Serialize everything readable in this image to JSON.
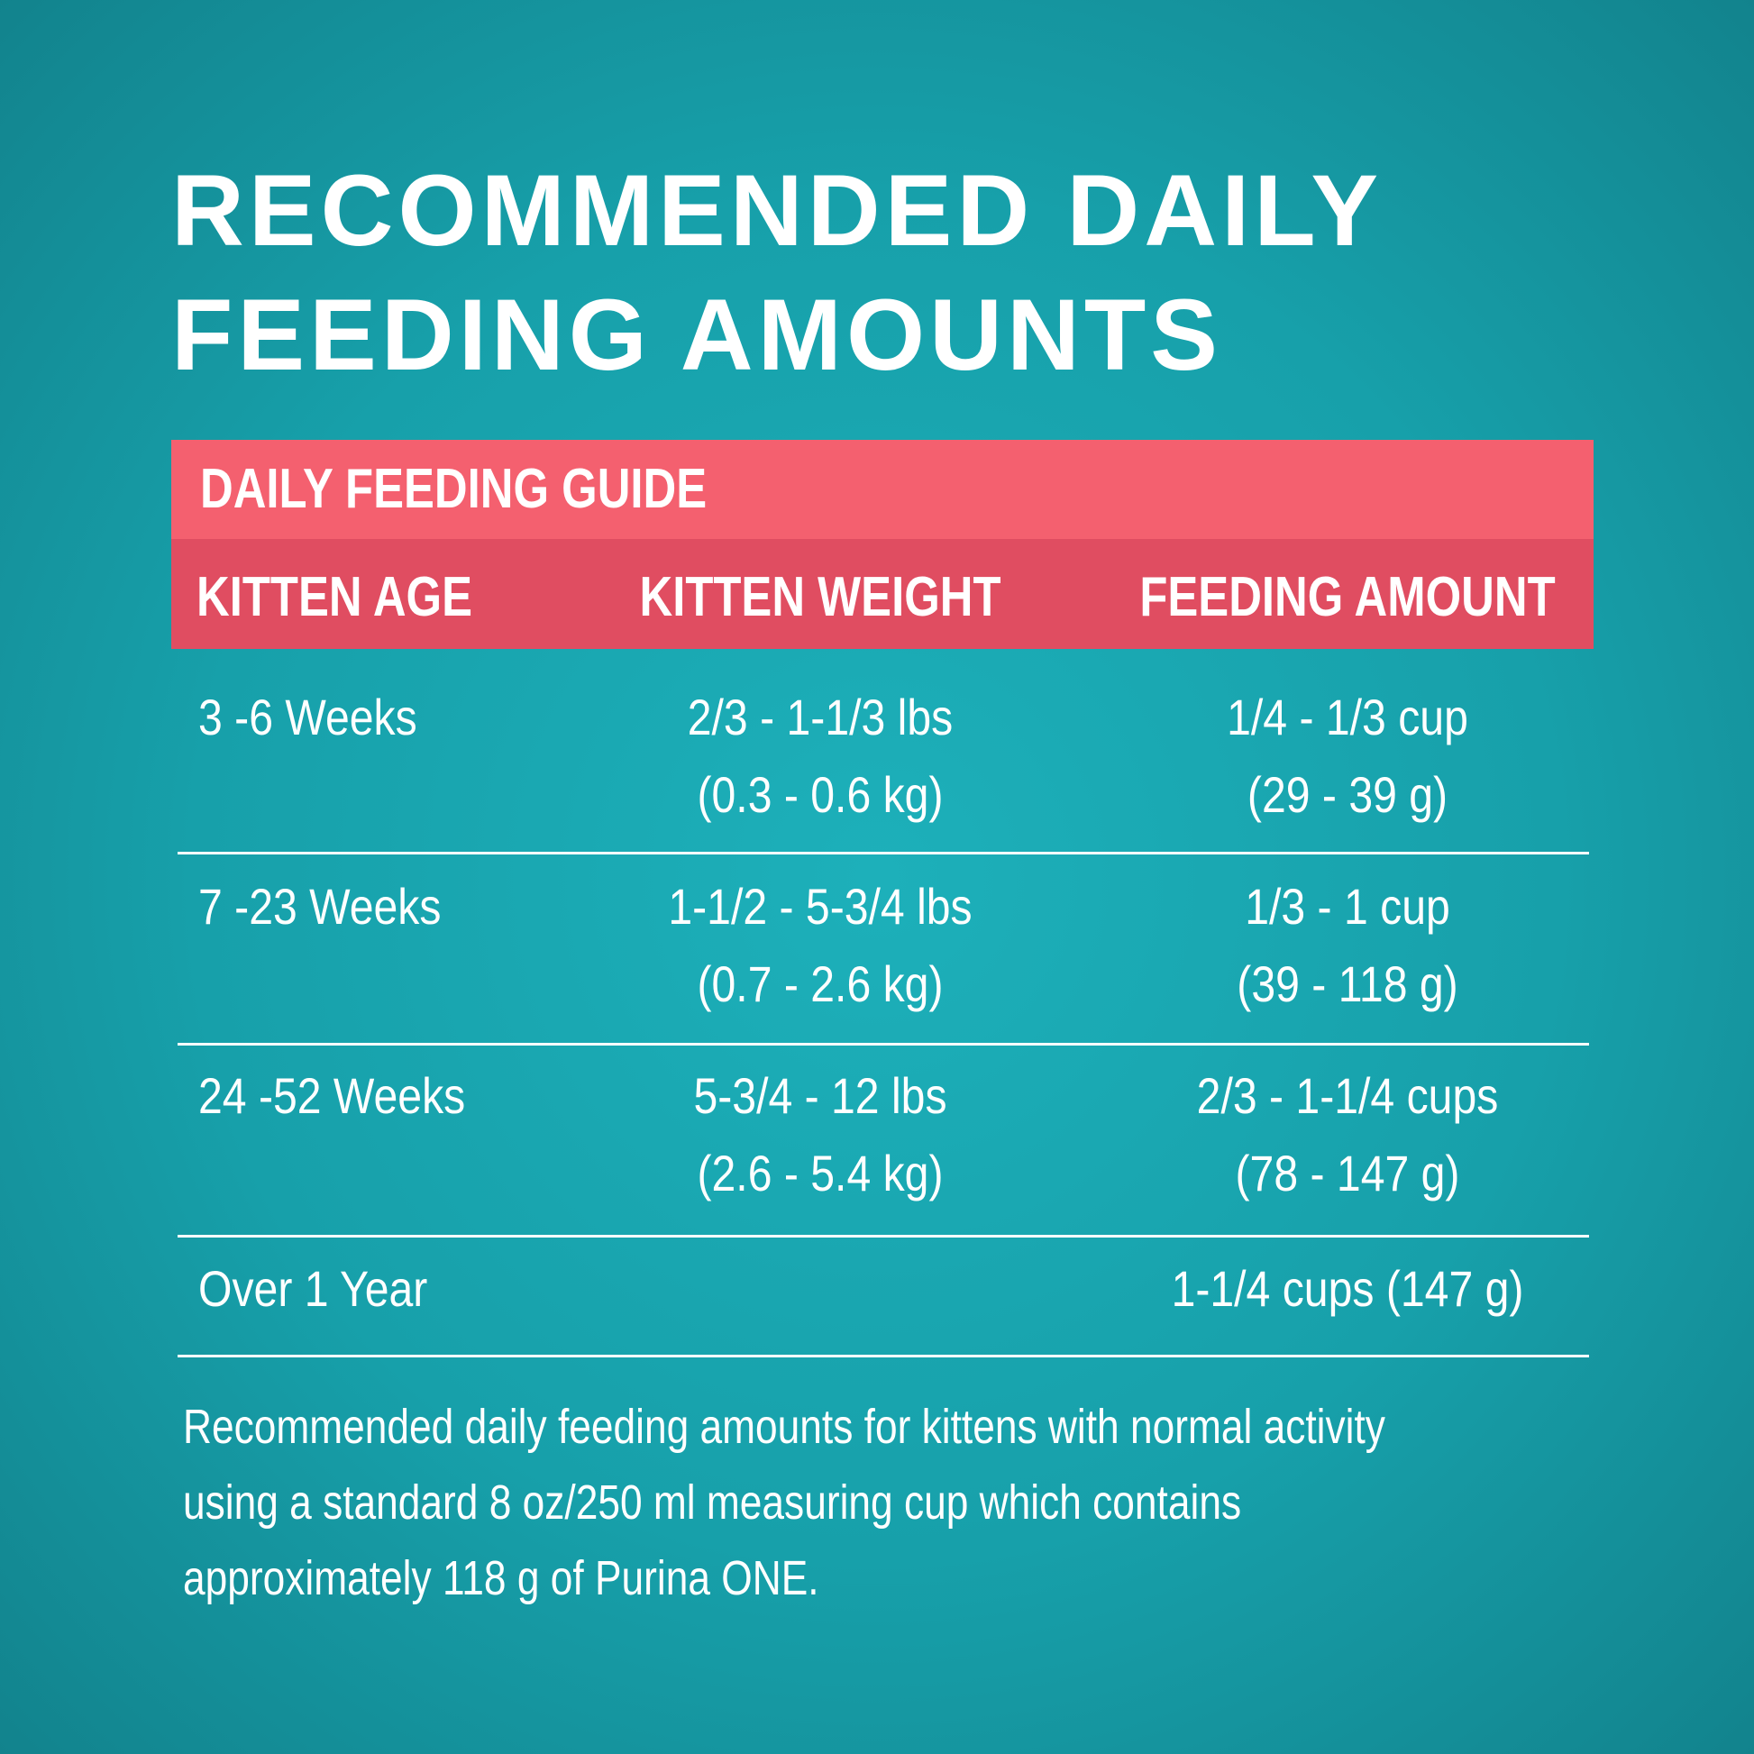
{
  "title": {
    "lines": [
      "RECOMMENDED DAILY",
      "FEEDING AMOUNTS"
    ]
  },
  "table": {
    "title": "DAILY FEEDING GUIDE",
    "columns": [
      "KITTEN AGE",
      "KITTEN WEIGHT",
      "FEEDING AMOUNT"
    ],
    "rows": [
      {
        "age": "3 -6 Weeks",
        "weight": [
          "2/3 - 1-1/3 lbs",
          "(0.3 - 0.6 kg)"
        ],
        "amount": [
          "1/4 - 1/3 cup",
          "(29 - 39 g)"
        ]
      },
      {
        "age": "7 -23 Weeks",
        "weight": [
          "1-1/2 - 5-3/4 lbs",
          "(0.7 - 2.6 kg)"
        ],
        "amount": [
          "1/3 - 1 cup",
          "(39 - 118 g)"
        ]
      },
      {
        "age": "24 -52 Weeks",
        "weight": [
          "5-3/4 - 12 lbs",
          "(2.6 - 5.4 kg)"
        ],
        "amount": [
          "2/3 - 1-1/4 cups",
          "(78 - 147 g)"
        ]
      },
      {
        "age": "Over 1 Year",
        "amount": [
          "1-1/4 cups (147 g)"
        ]
      }
    ]
  },
  "note": {
    "lines": [
      "Recommended daily feeding amounts for kittens with normal activity",
      "using a standard 8 oz/250 ml measuring cup which contains",
      "approximately 118 g of Purina ONE."
    ]
  }
}
